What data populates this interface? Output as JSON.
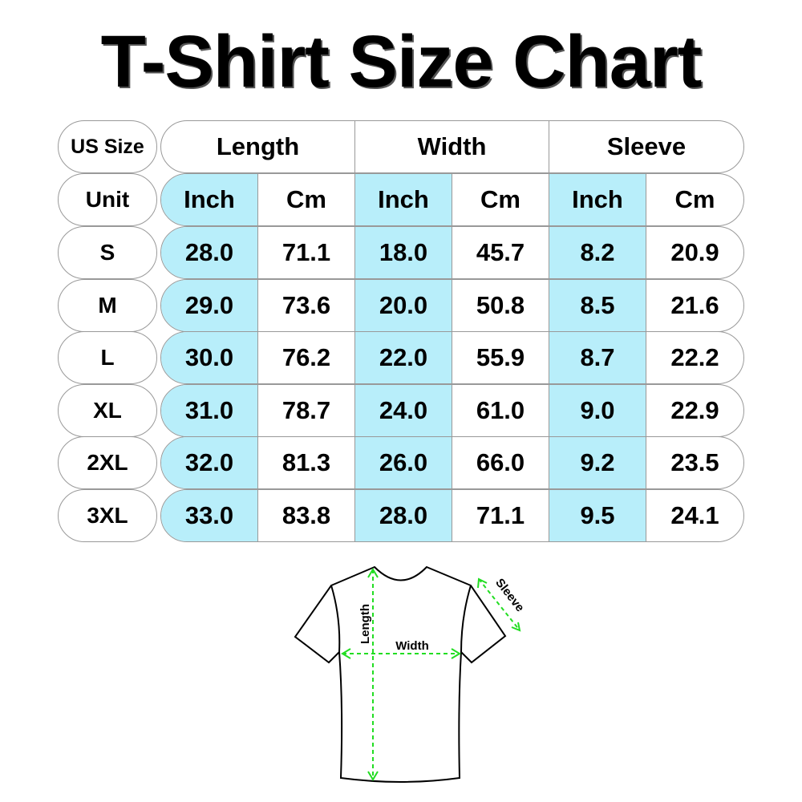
{
  "title": "T-Shirt Size Chart",
  "table": {
    "corner_label": "US Size",
    "unit_label": "Unit",
    "groups": [
      "Length",
      "Width",
      "Sleeve"
    ],
    "units": [
      "Inch",
      "Cm",
      "Inch",
      "Cm",
      "Inch",
      "Cm"
    ],
    "rows": [
      {
        "size": "S",
        "values": [
          "28.0",
          "71.1",
          "18.0",
          "45.7",
          "8.2",
          "20.9"
        ]
      },
      {
        "size": "M",
        "values": [
          "29.0",
          "73.6",
          "20.0",
          "50.8",
          "8.5",
          "21.6"
        ]
      },
      {
        "size": "L",
        "values": [
          "30.0",
          "76.2",
          "22.0",
          "55.9",
          "8.7",
          "22.2"
        ]
      },
      {
        "size": "XL",
        "values": [
          "31.0",
          "78.7",
          "24.0",
          "61.0",
          "9.0",
          "22.9"
        ]
      },
      {
        "size": "2XL",
        "values": [
          "32.0",
          "81.3",
          "26.0",
          "66.0",
          "9.2",
          "23.5"
        ]
      },
      {
        "size": "3XL",
        "values": [
          "33.0",
          "83.8",
          "28.0",
          "71.1",
          "9.5",
          "24.1"
        ]
      }
    ]
  },
  "diagram": {
    "length_label": "Length",
    "width_label": "Width",
    "sleeve_label": "Sleeve"
  },
  "colors": {
    "inch_column": "#b8eefa",
    "measure_line": "#22dd22",
    "border": "#999999"
  }
}
